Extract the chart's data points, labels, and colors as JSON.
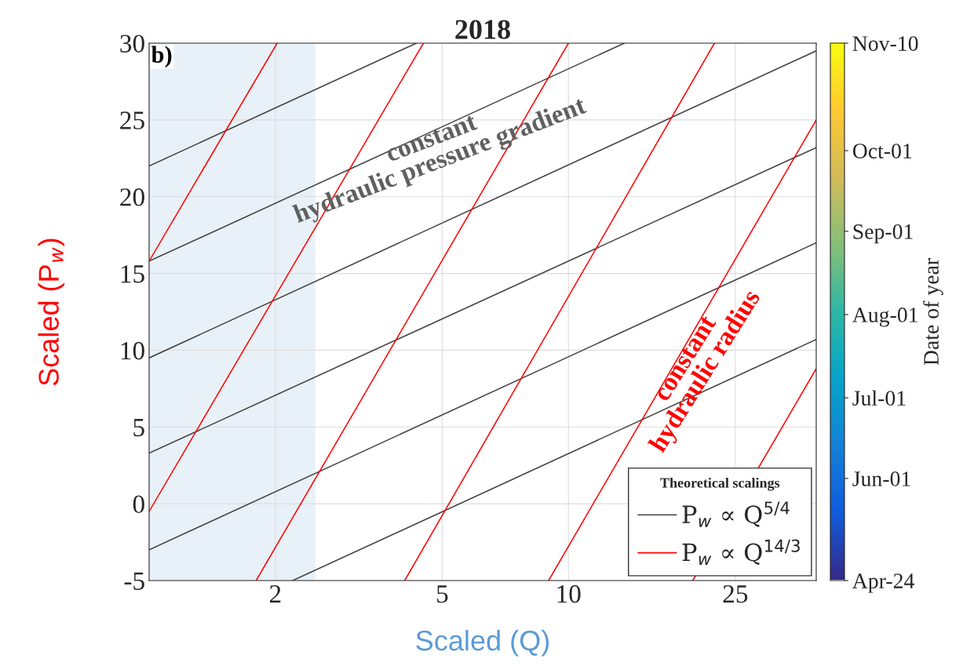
{
  "chart_data": {
    "type": "line",
    "title": "2018",
    "xlabel": "Scaled (Q)",
    "ylabel": "Scaled (P$_{w}$)",
    "clabel": "Date of year",
    "legend_title": "Theoretical scalings",
    "annotations": [
      "b)",
      "constant\nhydraulic pressure gradient",
      "constant\nhydraulic radius"
    ],
    "series": [
      {
        "name": "P$_{w}$ ∝ Q$^{5/4}$",
        "color": "#404040",
        "x": [
          1,
          4.34
        ],
        "values": [
          22.0,
          30
        ]
      },
      {
        "color": "#404040",
        "x": [
          1,
          13.6
        ],
        "values": [
          15.8,
          30
        ]
      },
      {
        "color": "#404040",
        "x": [
          1,
          39
        ],
        "values": [
          9.5,
          29.5
        ]
      },
      {
        "color": "#404040",
        "x": [
          1,
          39
        ],
        "values": [
          3.3,
          23.2
        ]
      },
      {
        "color": "#404040",
        "x": [
          1,
          39
        ],
        "values": [
          -3.0,
          17.0
        ]
      },
      {
        "color": "#404040",
        "x": [
          2.2,
          39
        ],
        "values": [
          -5,
          10.7
        ]
      },
      {
        "name": "P$_{w}$ ∝ Q$^{14/3}$",
        "color": "#ff0000",
        "x": [
          1,
          2.02
        ],
        "values": [
          15.8,
          30
        ]
      },
      {
        "color": "#ff0000",
        "x": [
          1,
          4.51
        ],
        "values": [
          -0.5,
          30
        ]
      },
      {
        "color": "#ff0000",
        "x": [
          1.8,
          10.0
        ],
        "values": [
          -5,
          30
        ]
      },
      {
        "color": "#ff0000",
        "x": [
          4.07,
          22.3
        ],
        "values": [
          -5,
          30
        ]
      },
      {
        "color": "#ff0000",
        "x": [
          8.97,
          39
        ],
        "values": [
          -5,
          25.0
        ]
      },
      {
        "color": "#ff0000",
        "x": [
          19.8,
          39
        ],
        "values": [
          -5,
          8.8
        ]
      }
    ],
    "bands": [
      {
        "axis": "x",
        "from": 1,
        "to": 2.49,
        "color": "#e8f1f7"
      }
    ],
    "xlim": [
      1,
      39
    ],
    "xticks": [
      2,
      5,
      10,
      25
    ],
    "log": "x",
    "ylim": [
      -5,
      30
    ],
    "yticks": [
      -5,
      0,
      5,
      10,
      15,
      20,
      25,
      30
    ],
    "clim": [
      "2018-04-24",
      "2018-11-10"
    ],
    "cticks": [
      {
        "value": "2018-04-24",
        "label": "Apr-24"
      },
      {
        "value": "2018-06-01",
        "label": "Jun-01"
      },
      {
        "value": "2018-07-01",
        "label": "Jul-01"
      },
      {
        "value": "2018-08-01",
        "label": "Aug-01"
      },
      {
        "value": "2018-09-01",
        "label": "Sep-01"
      },
      {
        "value": "2018-10-01",
        "label": "Oct-01"
      },
      {
        "value": "2018-11-10",
        "label": "Nov-10"
      }
    ],
    "grid": true,
    "legend": "bottom right",
    "line_style": "solid",
    "marker": "none"
  }
}
